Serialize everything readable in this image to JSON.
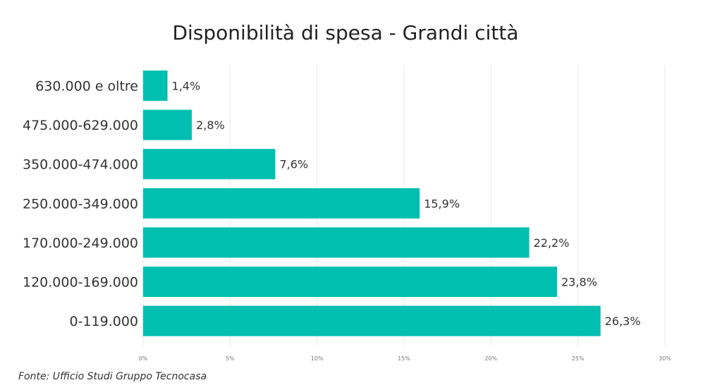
{
  "chart_data": {
    "type": "bar",
    "orientation": "horizontal",
    "title": "Disponibilità di spesa - Grandi città",
    "categories": [
      "630.000 e oltre",
      "475.000-629.000",
      "350.000-474.000",
      "250.000-349.000",
      "170.000-249.000",
      "120.000-169.000",
      "0-119.000"
    ],
    "values": [
      1.4,
      2.8,
      7.6,
      15.9,
      22.2,
      23.8,
      26.3
    ],
    "value_labels": [
      "1,4%",
      "2,8%",
      "7,6%",
      "15,9%",
      "22,2%",
      "23,8%",
      "26,3%"
    ],
    "xticks": [
      0,
      5,
      10,
      15,
      20,
      25,
      30
    ],
    "xtick_labels": [
      "0%",
      "5%",
      "10%",
      "15%",
      "20%",
      "25%",
      "30%"
    ],
    "xlim": [
      0,
      30
    ],
    "xlabel": "",
    "ylabel": "",
    "grid": true,
    "legend": "none",
    "bar_color": "#00BFB0"
  },
  "source": "Fonte: Ufficio Studi Gruppo Tecnocasa"
}
